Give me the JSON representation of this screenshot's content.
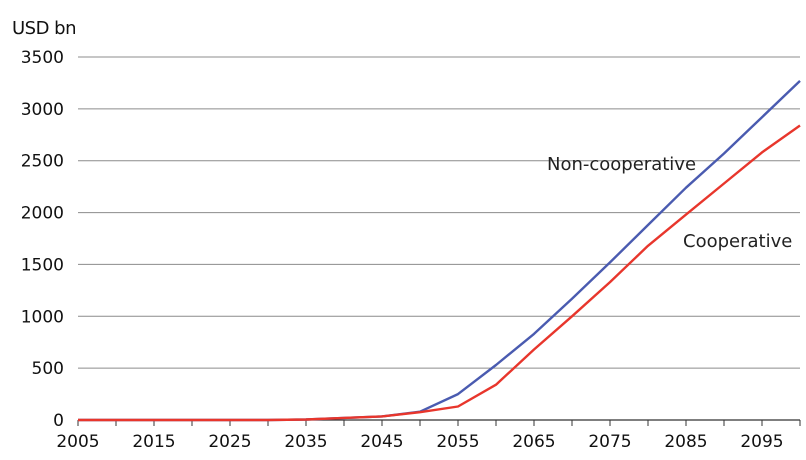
{
  "chart_data": {
    "type": "line",
    "title": "",
    "unit_label": "USD bn",
    "xlabel": "",
    "ylabel": "",
    "xlim": [
      2005,
      2100
    ],
    "ylim": [
      0,
      3500
    ],
    "x_ticks": [
      2005,
      2015,
      2025,
      2035,
      2045,
      2055,
      2065,
      2075,
      2085,
      2095
    ],
    "y_ticks": [
      0,
      500,
      1000,
      1500,
      2000,
      2500,
      3000,
      3500
    ],
    "grid": "horizontal",
    "legend": "inline labels",
    "series": [
      {
        "name": "Non-cooperative",
        "color": "#4a5bb0",
        "points": [
          [
            2005,
            0
          ],
          [
            2010,
            0
          ],
          [
            2015,
            0
          ],
          [
            2020,
            0
          ],
          [
            2025,
            0
          ],
          [
            2030,
            0
          ],
          [
            2035,
            5
          ],
          [
            2040,
            20
          ],
          [
            2045,
            35
          ],
          [
            2050,
            80
          ],
          [
            2055,
            250
          ],
          [
            2060,
            530
          ],
          [
            2065,
            830
          ],
          [
            2070,
            1170
          ],
          [
            2075,
            1520
          ],
          [
            2080,
            1880
          ],
          [
            2085,
            2240
          ],
          [
            2090,
            2570
          ],
          [
            2095,
            2920
          ],
          [
            2100,
            3270
          ]
        ]
      },
      {
        "name": "Cooperative",
        "color": "#e8362c",
        "points": [
          [
            2005,
            0
          ],
          [
            2010,
            0
          ],
          [
            2015,
            0
          ],
          [
            2020,
            0
          ],
          [
            2025,
            0
          ],
          [
            2030,
            0
          ],
          [
            2035,
            5
          ],
          [
            2040,
            20
          ],
          [
            2045,
            35
          ],
          [
            2050,
            75
          ],
          [
            2055,
            130
          ],
          [
            2060,
            340
          ],
          [
            2065,
            680
          ],
          [
            2070,
            1000
          ],
          [
            2075,
            1330
          ],
          [
            2080,
            1680
          ],
          [
            2085,
            1980
          ],
          [
            2090,
            2280
          ],
          [
            2095,
            2580
          ],
          [
            2100,
            2840
          ]
        ]
      }
    ],
    "annotations": [
      {
        "text": "Non-cooperative",
        "series": "Non-cooperative"
      },
      {
        "text": "Cooperative",
        "series": "Cooperative"
      }
    ]
  }
}
